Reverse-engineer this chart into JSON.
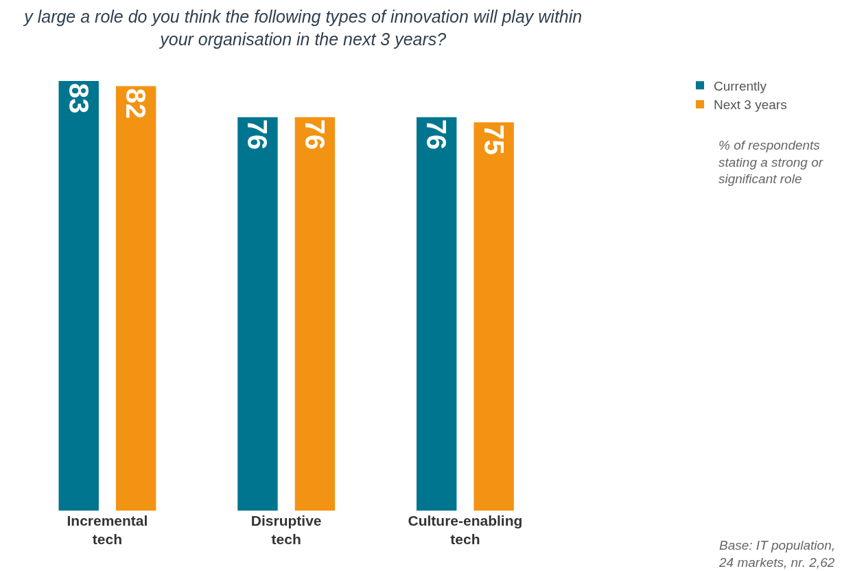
{
  "chart_data": {
    "type": "bar",
    "title": "y large a role do you think the following types of innovation will play within your organisation in the next 3 years?",
    "categories": [
      "Incremental tech",
      "Disruptive tech",
      "Culture-enabling tech"
    ],
    "series": [
      {
        "name": "Currently",
        "color": "#00758f",
        "values": [
          83,
          76,
          76
        ]
      },
      {
        "name": "Next 3 years",
        "color": "#f39313",
        "values": [
          82,
          76,
          75
        ]
      }
    ],
    "data_labels": true,
    "legend": "top right",
    "annotations": [
      "% of respondents stating a strong or significant role",
      "Base: IT population, 24 markets, nr. 2,62"
    ]
  }
}
